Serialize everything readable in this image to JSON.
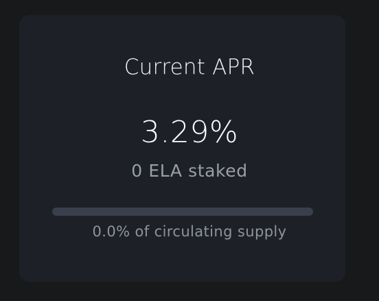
{
  "card": {
    "title": "Current APR",
    "apr_value": "3.29%",
    "staked_text": "0 ELA staked",
    "supply_progress": 0.0,
    "supply_text": "0.0% of circulating supply"
  },
  "colors": {
    "page_background": "#18191a",
    "card_background": "#1d2027",
    "bar_track": "#3a3f4c",
    "bar_fill": "#6b8cff"
  }
}
